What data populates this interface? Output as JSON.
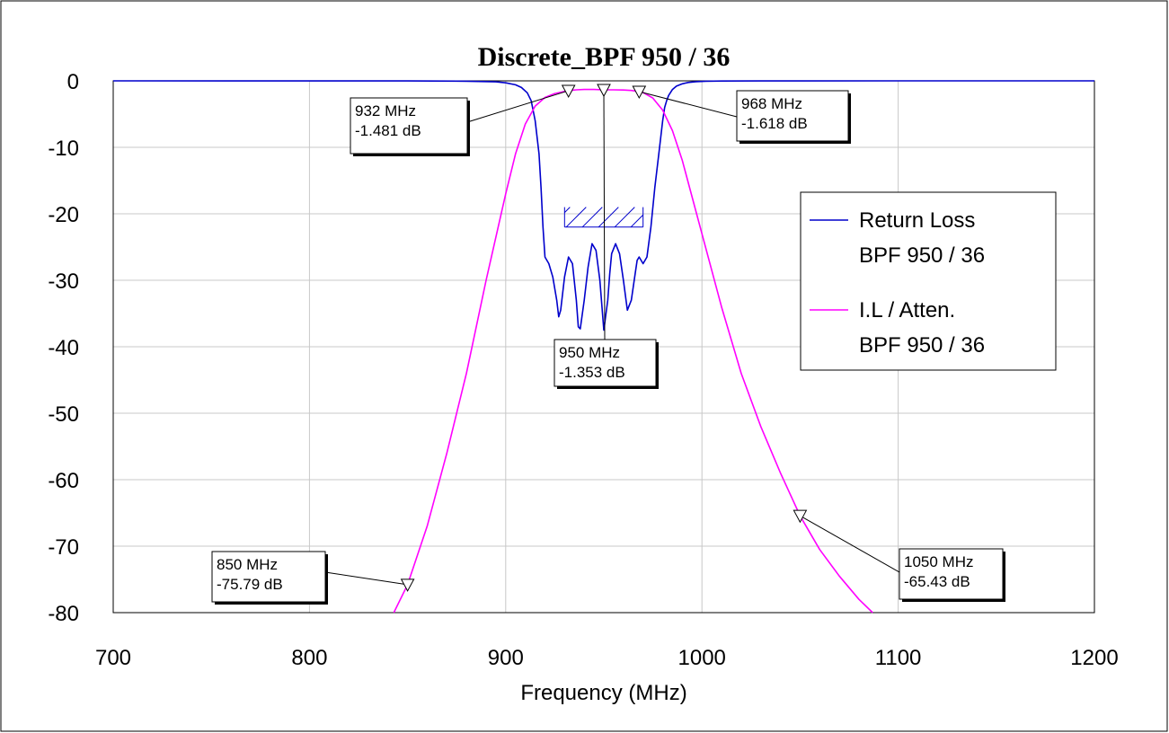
{
  "chart_data": {
    "type": "line",
    "title": "Discrete_BPF 950 / 36",
    "xlabel": "Frequency (MHz)",
    "ylabel": "",
    "xlim": [
      700,
      1200
    ],
    "ylim": [
      -80,
      0
    ],
    "x_ticks": [
      "700",
      "800",
      "900",
      "1000",
      "1100",
      "1200"
    ],
    "y_ticks": [
      "0",
      "-10",
      "-20",
      "-30",
      "-40",
      "-50",
      "-60",
      "-70",
      "-80"
    ],
    "grid": true,
    "legend_position": "right",
    "series": [
      {
        "name": "Return Loss\nBPF 950 / 36",
        "legend_lines": [
          "Return Loss",
          "BPF 950 / 36"
        ],
        "color": "#0000cc",
        "x": [
          700,
          850,
          880,
          895,
          900,
          905,
          908,
          911,
          913,
          915,
          917,
          918,
          919,
          920,
          922,
          924,
          926,
          927,
          928,
          930,
          932,
          934,
          936,
          937,
          938,
          940,
          942,
          944,
          946,
          948,
          950,
          952,
          953,
          954,
          956,
          958,
          960,
          962,
          964,
          966,
          967,
          968,
          970,
          972,
          974,
          976,
          978,
          980,
          981,
          982,
          983,
          985,
          987,
          990,
          993,
          997,
          1002,
          1010,
          1030,
          1100,
          1200
        ],
        "y": [
          0,
          -0.01,
          -0.05,
          -0.15,
          -0.3,
          -0.6,
          -1.0,
          -1.8,
          -3.0,
          -6.0,
          -11,
          -16,
          -22,
          -26.5,
          -27.5,
          -29.5,
          -33,
          -35.5,
          -34.5,
          -29.5,
          -26.5,
          -27.5,
          -33,
          -37,
          -37.3,
          -33,
          -28,
          -24.5,
          -25.5,
          -30,
          -37.5,
          -33,
          -29,
          -26,
          -24.5,
          -26,
          -30,
          -34.5,
          -33,
          -29,
          -27,
          -26.5,
          -27.5,
          -26.5,
          -22,
          -16,
          -11,
          -6,
          -4,
          -3,
          -2.2,
          -1.3,
          -0.8,
          -0.45,
          -0.25,
          -0.12,
          -0.06,
          -0.03,
          -0.01,
          0,
          0
        ],
        "mask_box": {
          "x": [
            930,
            970
          ],
          "y": [
            -19,
            -22
          ]
        }
      },
      {
        "name": "I.L / Atten.\nBPF 950 / 36",
        "legend_lines": [
          "I.L / Atten.",
          "BPF 950 / 36"
        ],
        "color": "#ff00ff",
        "x": [
          843,
          850,
          860,
          870,
          880,
          890,
          900,
          905,
          910,
          915,
          920,
          925,
          930,
          932,
          936,
          940,
          945,
          950,
          955,
          960,
          964,
          968,
          970,
          975,
          980,
          985,
          990,
          1000,
          1010,
          1020,
          1030,
          1040,
          1050,
          1060,
          1070,
          1080,
          1087
        ],
        "y": [
          -80,
          -75.79,
          -67,
          -56,
          -44,
          -30,
          -17,
          -11,
          -6.5,
          -3.8,
          -2.5,
          -1.9,
          -1.6,
          -1.481,
          -1.35,
          -1.3,
          -1.3,
          -1.353,
          -1.35,
          -1.38,
          -1.45,
          -1.618,
          -1.75,
          -2.6,
          -4.4,
          -7.5,
          -12,
          -23,
          -34,
          -44,
          -52,
          -59,
          -65.43,
          -70.5,
          -74.5,
          -78,
          -80
        ]
      }
    ],
    "markers": [
      {
        "freq": 932,
        "value": -1.481,
        "trace": 1,
        "label_lines": [
          "932 MHz",
          "-1.481 dB"
        ]
      },
      {
        "freq": 950,
        "value": -1.353,
        "trace": 1,
        "label_lines": [
          "950 MHz",
          "-1.353 dB"
        ]
      },
      {
        "freq": 968,
        "value": -1.618,
        "trace": 1,
        "label_lines": [
          "968 MHz",
          "-1.618 dB"
        ]
      },
      {
        "freq": 850,
        "value": -75.79,
        "trace": 1,
        "label_lines": [
          "850 MHz",
          "-75.79 dB"
        ]
      },
      {
        "freq": 1050,
        "value": -65.43,
        "trace": 1,
        "label_lines": [
          "1050 MHz",
          "-65.43 dB"
        ]
      }
    ]
  }
}
